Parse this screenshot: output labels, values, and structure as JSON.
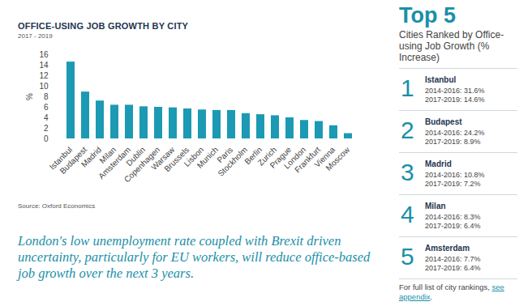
{
  "chart_data": {
    "type": "bar",
    "title": "OFFICE-USING JOB GROWTH BY CITY",
    "subtitle": "2017 - 2019",
    "source": "Source: Oxford Economics",
    "ylabel": "%",
    "categories": [
      "Istanbul",
      "Budapest",
      "Madrid",
      "Milan",
      "Amsterdam",
      "Dublin",
      "Copenhagen",
      "Warsaw",
      "Brussels",
      "Lisbon",
      "Munich",
      "Paris",
      "Stockholm",
      "Berlin",
      "Zurich",
      "Prague",
      "London",
      "Frankfurt",
      "Vienna",
      "Moscow"
    ],
    "values": [
      14.6,
      8.9,
      7.2,
      6.4,
      6.4,
      6.1,
      6.0,
      5.9,
      5.7,
      5.5,
      5.4,
      5.4,
      4.8,
      4.6,
      4.4,
      4.0,
      3.5,
      3.3,
      2.5,
      1.0
    ],
    "color": "#1c9ab3",
    "ylim": [
      0,
      16
    ],
    "yticks": [
      0,
      2,
      4,
      6,
      8,
      10,
      12,
      14,
      16
    ],
    "grid": false,
    "data_labels": false
  },
  "quote": "London's low unemployment rate coupled with Brexit driven uncertainty, particularly for EU workers, will reduce office-based job growth over the next 3 years.",
  "panel": {
    "title": "Top 5",
    "subtitle": "Cities Ranked by Office-using Job Growth (% Increase)",
    "entries": [
      {
        "rank": 1,
        "city": "Istanbul",
        "lines": [
          "2014-2016: 31.6%",
          "2017-2019: 14.6%"
        ]
      },
      {
        "rank": 2,
        "city": "Budapest",
        "lines": [
          "2014-2016: 24.2%",
          "2017-2019: 8.9%"
        ]
      },
      {
        "rank": 3,
        "city": "Madrid",
        "lines": [
          "2014-2016: 10.8%",
          "2017-2019: 7.2%"
        ]
      },
      {
        "rank": 4,
        "city": "Milan",
        "lines": [
          "2014-2016: 8.3%",
          "2017-2019: 6.4%"
        ]
      },
      {
        "rank": 5,
        "city": "Amsterdam",
        "lines": [
          "2014-2016: 7.7%",
          "2017-2019: 6.4%"
        ]
      }
    ],
    "footnote": [
      "For full list of city rankings, ",
      "see appendix",
      "."
    ]
  }
}
